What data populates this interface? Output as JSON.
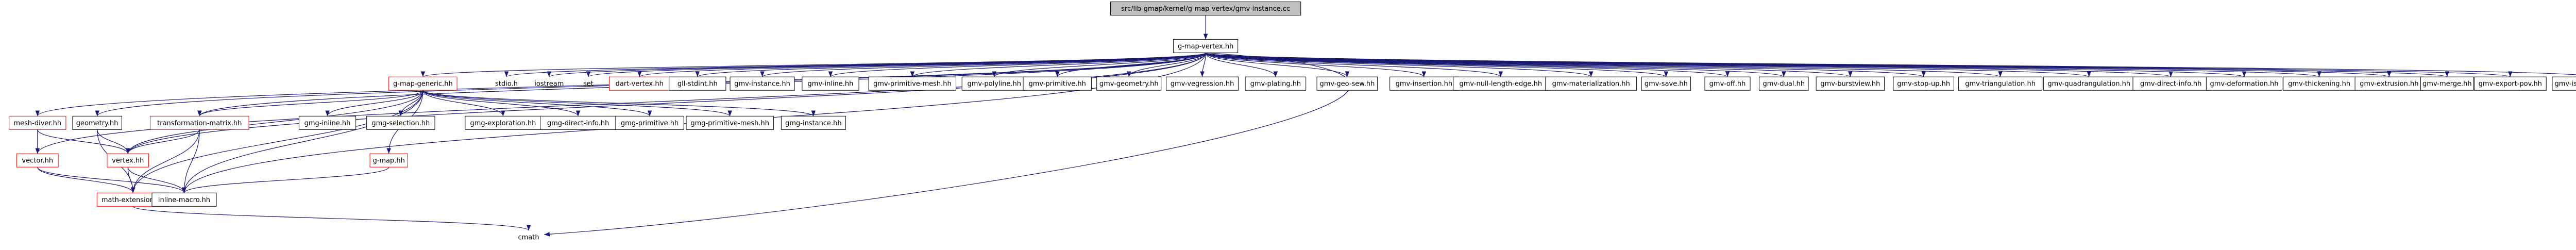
{
  "nodes": [
    {
      "label": "src/lib-gmap/kernel/g-map-vertex/gmv-instance.cc"
    },
    {
      "label": "g-map-vertex.hh"
    },
    {
      "label": "g-map-generic.hh"
    },
    {
      "label": "stdio.h"
    },
    {
      "label": "iostream"
    },
    {
      "label": "set"
    },
    {
      "label": "dart-vertex.hh"
    },
    {
      "label": "gll-stdint.hh"
    },
    {
      "label": "gmv-instance.hh"
    },
    {
      "label": "gmv-inline.hh"
    },
    {
      "label": "gmv-primitive-mesh.hh"
    },
    {
      "label": "gmv-polyline.hh"
    },
    {
      "label": "gmv-primitive.hh"
    },
    {
      "label": "gmv-geometry.hh"
    },
    {
      "label": "gmv-vegression.hh"
    },
    {
      "label": "gmv-plating.hh"
    },
    {
      "label": "gmv-geo-sew.hh"
    },
    {
      "label": "gmv-insertion.hh"
    },
    {
      "label": "gmv-null-length-edge.hh"
    },
    {
      "label": "gmv-materialization.hh"
    },
    {
      "label": "gmv-save.hh"
    },
    {
      "label": "gmv-off.hh"
    },
    {
      "label": "gmv-dual.hh"
    },
    {
      "label": "gmv-burstview.hh"
    },
    {
      "label": "gmv-stop-up.hh"
    },
    {
      "label": "gmv-triangulation.hh"
    },
    {
      "label": "gmv-quadrangulation.hh"
    },
    {
      "label": "gmv-direct-info.hh"
    },
    {
      "label": "gmv-deformation.hh"
    },
    {
      "label": "gmv-thickening.hh"
    },
    {
      "label": "gmv-extrusion.hh"
    },
    {
      "label": "gmv-merge.hh"
    },
    {
      "label": "gmv-export-pov.hh"
    },
    {
      "label": "gmv-isomorphisme.hh"
    },
    {
      "label": "mesh-diver.hh"
    },
    {
      "label": "geometry.hh"
    },
    {
      "label": "transformation-matrix.hh"
    },
    {
      "label": "gmg-inline.hh"
    },
    {
      "label": "gmg-selection.hh"
    },
    {
      "label": "gmg-exploration.hh"
    },
    {
      "label": "gmg-direct-info.hh"
    },
    {
      "label": "gmg-primitive.hh"
    },
    {
      "label": "gmg-primitive-mesh.hh"
    },
    {
      "label": "gmg-instance.hh"
    },
    {
      "label": "vector.hh"
    },
    {
      "label": "vertex.hh"
    },
    {
      "label": "g-map.hh"
    },
    {
      "label": "math-extension.hh"
    },
    {
      "label": "inline-macro.hh"
    },
    {
      "label": "cmath"
    }
  ]
}
